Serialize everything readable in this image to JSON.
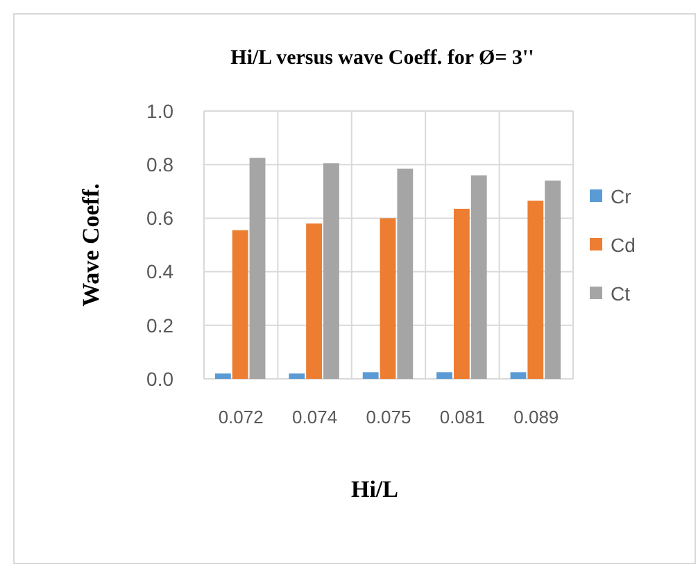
{
  "chart_data": {
    "type": "bar",
    "title": "Hi/L versus wave Coeff. for Ø= 3''",
    "xlabel": "Hi/L",
    "ylabel": "Wave Coeff.",
    "categories": [
      "0.072",
      "0.074",
      "0.075",
      "0.081",
      "0.089"
    ],
    "series": [
      {
        "name": "Cr",
        "color": "#5b9bd5",
        "values": [
          0.02,
          0.02,
          0.025,
          0.025,
          0.025
        ]
      },
      {
        "name": "Cd",
        "color": "#ed7d31",
        "values": [
          0.555,
          0.58,
          0.6,
          0.635,
          0.665
        ]
      },
      {
        "name": "Ct",
        "color": "#a5a5a5",
        "values": [
          0.825,
          0.805,
          0.785,
          0.76,
          0.74
        ]
      }
    ],
    "ylim": [
      0,
      1
    ],
    "yticks": [
      {
        "value": 0,
        "label": "0.0"
      },
      {
        "value": 0.2,
        "label": "0.2"
      },
      {
        "value": 0.4,
        "label": "0.4"
      },
      {
        "value": 0.6,
        "label": "0.6"
      },
      {
        "value": 0.8,
        "label": "0.8"
      },
      {
        "value": 1,
        "label": "1.0"
      }
    ],
    "grid": true,
    "legend": "right"
  }
}
